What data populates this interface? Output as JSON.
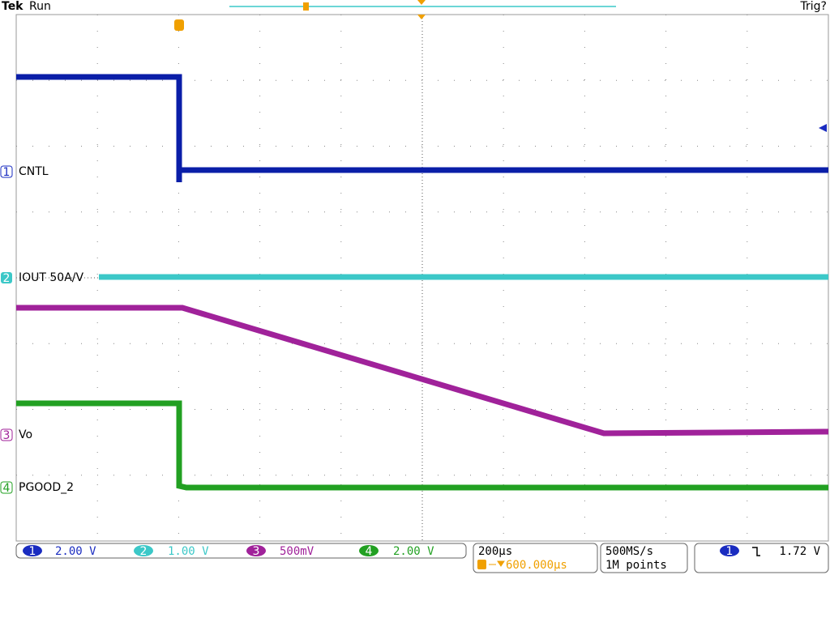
{
  "header": {
    "brand": "Tek",
    "status": "Run",
    "trigger_status": "Trig?"
  },
  "channels": [
    {
      "number": "1",
      "label": "CNTL",
      "scale": "2.00 V"
    },
    {
      "number": "2",
      "label": "IOUT 50A/V",
      "scale": "1.00 V"
    },
    {
      "number": "3",
      "label": "Vo",
      "scale": "500mV"
    },
    {
      "number": "4",
      "label": "PGOOD_2",
      "scale": "2.00 V"
    }
  ],
  "timebase": {
    "scale": "200µs",
    "delay": "600.000µs"
  },
  "acquisition": {
    "sample_rate": "500MS/s",
    "record_length": "1M points"
  },
  "trigger": {
    "channel": "1",
    "level": "1.72 V"
  }
}
